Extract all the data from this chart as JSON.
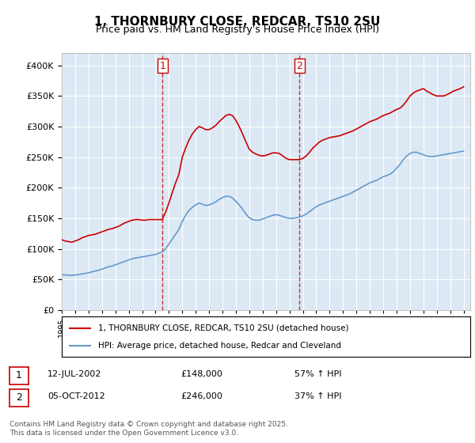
{
  "title": "1, THORNBURY CLOSE, REDCAR, TS10 2SU",
  "subtitle": "Price paid vs. HM Land Registry's House Price Index (HPI)",
  "ylabel_prefix": "£",
  "background_color": "#dce9f5",
  "plot_bg_color": "#dce9f5",
  "outer_bg_color": "#ffffff",
  "ylim": [
    0,
    420000
  ],
  "yticks": [
    0,
    50000,
    100000,
    150000,
    200000,
    250000,
    300000,
    350000,
    400000
  ],
  "xlim_start": 1995.0,
  "xlim_end": 2025.5,
  "vline1_x": 2002.53,
  "vline2_x": 2012.76,
  "vline1_label": "1",
  "vline2_label": "2",
  "red_line_color": "#cc0000",
  "blue_line_color": "#6699cc",
  "legend_label_red": "1, THORNBURY CLOSE, REDCAR, TS10 2SU (detached house)",
  "legend_label_blue": "HPI: Average price, detached house, Redcar and Cleveland",
  "annotation1_date": "12-JUL-2002",
  "annotation1_price": "£148,000",
  "annotation1_hpi": "57% ↑ HPI",
  "annotation2_date": "05-OCT-2012",
  "annotation2_price": "£246,000",
  "annotation2_hpi": "37% ↑ HPI",
  "footer": "Contains HM Land Registry data © Crown copyright and database right 2025.\nThis data is licensed under the Open Government Licence v3.0.",
  "red_data": {
    "years": [
      1995.0,
      1995.25,
      1995.5,
      1995.75,
      1996.0,
      1996.25,
      1996.5,
      1996.75,
      1997.0,
      1997.25,
      1997.5,
      1997.75,
      1998.0,
      1998.25,
      1998.5,
      1998.75,
      1999.0,
      1999.25,
      1999.5,
      1999.75,
      2000.0,
      2000.25,
      2000.5,
      2000.75,
      2001.0,
      2001.25,
      2001.5,
      2001.75,
      2002.0,
      2002.25,
      2002.5,
      2002.75,
      2003.0,
      2003.25,
      2003.5,
      2003.75,
      2004.0,
      2004.25,
      2004.5,
      2004.75,
      2005.0,
      2005.25,
      2005.5,
      2005.75,
      2006.0,
      2006.25,
      2006.5,
      2006.75,
      2007.0,
      2007.25,
      2007.5,
      2007.75,
      2008.0,
      2008.25,
      2008.5,
      2008.75,
      2009.0,
      2009.25,
      2009.5,
      2009.75,
      2010.0,
      2010.25,
      2010.5,
      2010.75,
      2011.0,
      2011.25,
      2011.5,
      2011.75,
      2012.0,
      2012.25,
      2012.5,
      2012.75,
      2013.0,
      2013.25,
      2013.5,
      2013.75,
      2014.0,
      2014.25,
      2014.5,
      2014.75,
      2015.0,
      2015.25,
      2015.5,
      2015.75,
      2016.0,
      2016.25,
      2016.5,
      2016.75,
      2017.0,
      2017.25,
      2017.5,
      2017.75,
      2018.0,
      2018.25,
      2018.5,
      2018.75,
      2019.0,
      2019.25,
      2019.5,
      2019.75,
      2020.0,
      2020.25,
      2020.5,
      2020.75,
      2021.0,
      2021.25,
      2021.5,
      2021.75,
      2022.0,
      2022.25,
      2022.5,
      2022.75,
      2023.0,
      2023.25,
      2023.5,
      2023.75,
      2024.0,
      2024.25,
      2024.5,
      2024.75,
      2025.0
    ],
    "values": [
      115000,
      113000,
      112000,
      111000,
      113000,
      115000,
      118000,
      120000,
      122000,
      123000,
      124000,
      126000,
      128000,
      130000,
      132000,
      133000,
      135000,
      137000,
      140000,
      143000,
      145000,
      147000,
      148000,
      148000,
      147000,
      147000,
      148000,
      148000,
      148000,
      148000,
      148000,
      160000,
      175000,
      192000,
      208000,
      222000,
      250000,
      265000,
      278000,
      288000,
      295000,
      300000,
      298000,
      295000,
      295000,
      298000,
      302000,
      308000,
      313000,
      318000,
      320000,
      318000,
      310000,
      300000,
      288000,
      275000,
      263000,
      258000,
      255000,
      253000,
      252000,
      253000,
      255000,
      257000,
      257000,
      256000,
      252000,
      248000,
      246000,
      246000,
      246000,
      246000,
      248000,
      252000,
      258000,
      265000,
      270000,
      275000,
      278000,
      280000,
      282000,
      283000,
      284000,
      285000,
      287000,
      289000,
      291000,
      293000,
      296000,
      299000,
      302000,
      305000,
      308000,
      310000,
      312000,
      315000,
      318000,
      320000,
      322000,
      325000,
      328000,
      330000,
      335000,
      342000,
      350000,
      355000,
      358000,
      360000,
      362000,
      358000,
      355000,
      352000,
      350000,
      350000,
      350000,
      352000,
      355000,
      358000,
      360000,
      362000,
      365000
    ]
  },
  "blue_data": {
    "years": [
      1995.0,
      1995.25,
      1995.5,
      1995.75,
      1996.0,
      1996.25,
      1996.5,
      1996.75,
      1997.0,
      1997.25,
      1997.5,
      1997.75,
      1998.0,
      1998.25,
      1998.5,
      1998.75,
      1999.0,
      1999.25,
      1999.5,
      1999.75,
      2000.0,
      2000.25,
      2000.5,
      2000.75,
      2001.0,
      2001.25,
      2001.5,
      2001.75,
      2002.0,
      2002.25,
      2002.5,
      2002.75,
      2003.0,
      2003.25,
      2003.5,
      2003.75,
      2004.0,
      2004.25,
      2004.5,
      2004.75,
      2005.0,
      2005.25,
      2005.5,
      2005.75,
      2006.0,
      2006.25,
      2006.5,
      2006.75,
      2007.0,
      2007.25,
      2007.5,
      2007.75,
      2008.0,
      2008.25,
      2008.5,
      2008.75,
      2009.0,
      2009.25,
      2009.5,
      2009.75,
      2010.0,
      2010.25,
      2010.5,
      2010.75,
      2011.0,
      2011.25,
      2011.5,
      2011.75,
      2012.0,
      2012.25,
      2012.5,
      2012.75,
      2013.0,
      2013.25,
      2013.5,
      2013.75,
      2014.0,
      2014.25,
      2014.5,
      2014.75,
      2015.0,
      2015.25,
      2015.5,
      2015.75,
      2016.0,
      2016.25,
      2016.5,
      2016.75,
      2017.0,
      2017.25,
      2017.5,
      2017.75,
      2018.0,
      2018.25,
      2018.5,
      2018.75,
      2019.0,
      2019.25,
      2019.5,
      2019.75,
      2020.0,
      2020.25,
      2020.5,
      2020.75,
      2021.0,
      2021.25,
      2021.5,
      2021.75,
      2022.0,
      2022.25,
      2022.5,
      2022.75,
      2023.0,
      2023.25,
      2023.5,
      2023.75,
      2024.0,
      2024.25,
      2024.5,
      2024.75,
      2025.0
    ],
    "values": [
      58000,
      57500,
      57000,
      57000,
      57500,
      58000,
      59000,
      60000,
      61000,
      62500,
      64000,
      65000,
      67000,
      69000,
      71000,
      72000,
      74000,
      76000,
      78000,
      80000,
      82000,
      84000,
      85000,
      86000,
      87000,
      88000,
      89000,
      90000,
      91000,
      93000,
      95000,
      100000,
      108000,
      116000,
      124000,
      132000,
      145000,
      155000,
      163000,
      168000,
      172000,
      175000,
      173000,
      171000,
      172000,
      174000,
      177000,
      181000,
      184000,
      186000,
      186000,
      183000,
      178000,
      172000,
      165000,
      157000,
      151000,
      148000,
      147000,
      147000,
      149000,
      151000,
      153000,
      155000,
      156000,
      155000,
      153000,
      151000,
      150000,
      150000,
      151000,
      152000,
      154000,
      157000,
      161000,
      165000,
      169000,
      172000,
      174000,
      176000,
      178000,
      180000,
      182000,
      184000,
      186000,
      188000,
      190000,
      193000,
      196000,
      199000,
      202000,
      205000,
      208000,
      210000,
      212000,
      215000,
      218000,
      220000,
      222000,
      226000,
      232000,
      238000,
      246000,
      252000,
      256000,
      258000,
      258000,
      256000,
      254000,
      252000,
      251000,
      251000,
      252000,
      253000,
      254000,
      255000,
      256000,
      257000,
      258000,
      259000,
      260000
    ]
  }
}
